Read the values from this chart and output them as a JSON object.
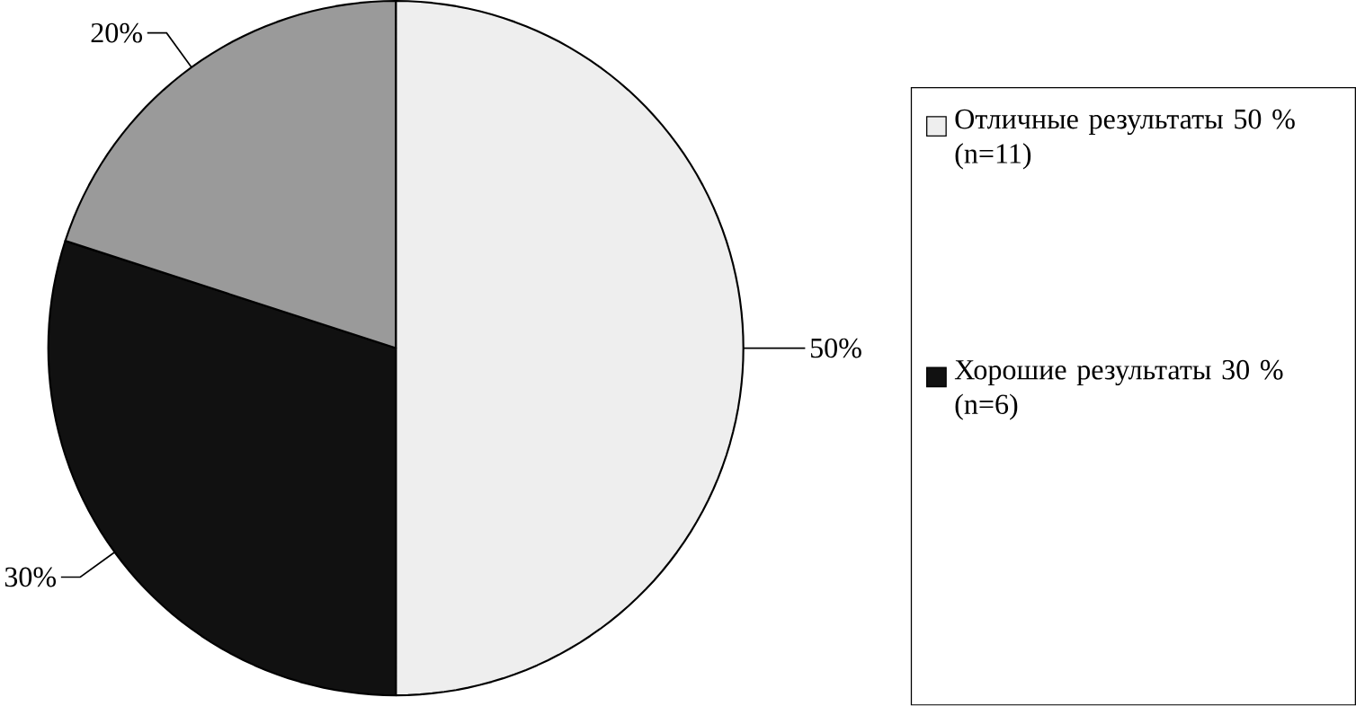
{
  "chart_data": {
    "type": "pie",
    "categories": [
      "Отличные результаты 50 % (n=11)",
      "Хорошие результаты 30 % (n=6)",
      null
    ],
    "values": [
      50,
      30,
      20
    ],
    "colors": [
      "#eeeeee",
      "#111111",
      "#9a9a9a"
    ],
    "value_labels": [
      "50%",
      "30%",
      "20%"
    ],
    "legend": "right"
  }
}
